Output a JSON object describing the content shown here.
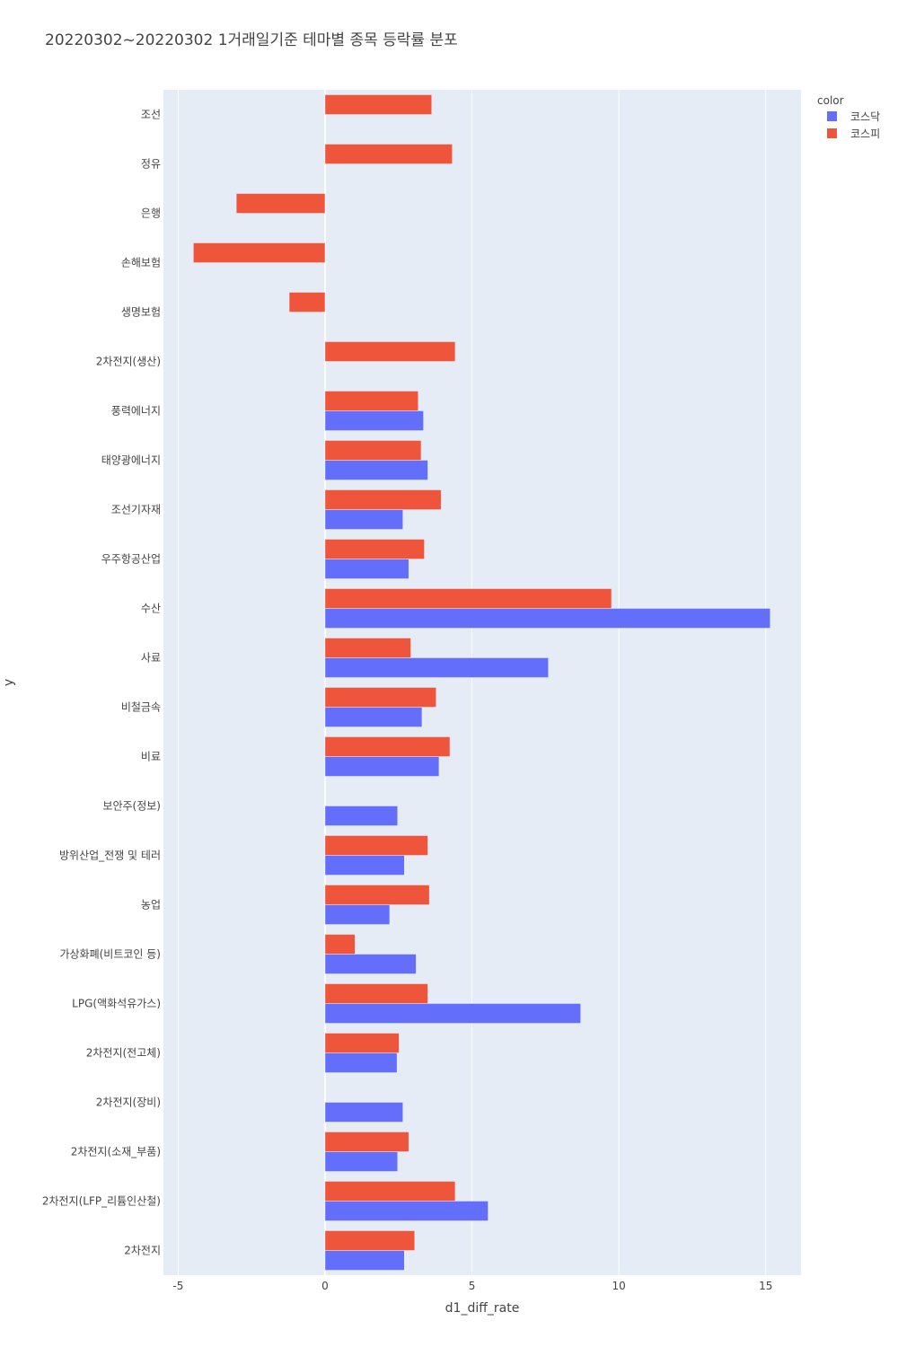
{
  "chart_data": {
    "type": "bar",
    "orientation": "horizontal",
    "barmode": "group",
    "title": "20220302~20220302 1거래일기준 테마별 종목 등락률 분포",
    "xlabel": "d1_diff_rate",
    "ylabel": "y",
    "xlim": [
      -5.5,
      16.2
    ],
    "xticks": [
      -5,
      0,
      5,
      10,
      15
    ],
    "grid": true,
    "legend": {
      "title": "color",
      "position": "top-right"
    },
    "categories": [
      "조선",
      "정유",
      "은행",
      "손해보험",
      "생명보험",
      "2차전지(생산)",
      "풍력에너지",
      "태양광에너지",
      "조선기자재",
      "우주항공산업",
      "수산",
      "사료",
      "비철금속",
      "비료",
      "보안주(정보)",
      "방위산업_전쟁 및 테러",
      "농업",
      "가상화폐(비트코인 등)",
      "LPG(액화석유가스)",
      "2차전지(전고체)",
      "2차전지(장비)",
      "2차전지(소재_부품)",
      "2차전지(LFP_리튬인산철)",
      "2차전지"
    ],
    "series": [
      {
        "name": "코스닥",
        "color": "#636efa",
        "values": [
          null,
          null,
          null,
          null,
          null,
          null,
          3.35,
          3.5,
          2.65,
          2.85,
          15.15,
          7.6,
          3.3,
          3.88,
          2.47,
          2.7,
          2.2,
          3.1,
          8.7,
          2.45,
          2.65,
          2.47,
          5.55,
          2.7
        ]
      },
      {
        "name": "코스피",
        "color": "#ef553b",
        "values": [
          3.63,
          4.33,
          -3.02,
          -4.48,
          -1.22,
          4.43,
          3.17,
          3.27,
          3.95,
          3.38,
          9.75,
          2.92,
          3.78,
          4.25,
          null,
          3.5,
          3.55,
          1.02,
          3.5,
          2.52,
          null,
          2.85,
          4.43,
          3.05
        ]
      }
    ]
  }
}
